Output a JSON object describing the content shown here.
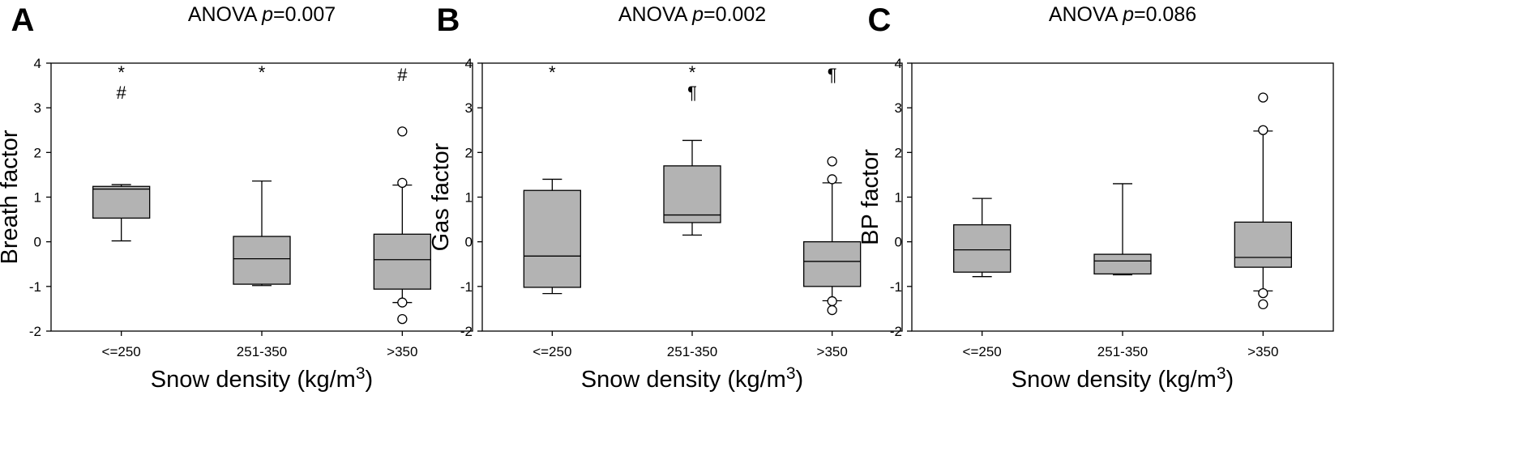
{
  "chart_data": [
    {
      "type": "box",
      "letter": "A",
      "title_prefix": "ANOVA ",
      "title_p": "p",
      "title_value": "=0.007",
      "ylabel": "Breath factor",
      "xlabel_main": "Snow density (kg/m",
      "xlabel_sup": "3",
      "xlabel_close": ")",
      "ylim": [
        -2,
        4
      ],
      "yticks": [
        "-2",
        "-1",
        "0",
        "1",
        "2",
        "3",
        "4"
      ],
      "categories": [
        "<=250",
        "251-350",
        ">350"
      ],
      "boxes": [
        {
          "q1": 0.53,
          "median": 1.18,
          "q3": 1.24,
          "whisker_low": 0.02,
          "whisker_high": 1.28,
          "outliers": []
        },
        {
          "q1": -0.95,
          "median": -0.38,
          "q3": 0.12,
          "whisker_low": -0.98,
          "whisker_high": 1.36,
          "outliers": []
        },
        {
          "q1": -1.06,
          "median": -0.4,
          "q3": 0.17,
          "whisker_low": -1.36,
          "whisker_high": 1.27,
          "outliers": [
            2.47,
            1.32,
            -1.36,
            -1.73
          ]
        }
      ],
      "annotations": [
        {
          "category": 0,
          "y": 3.8,
          "text": "*"
        },
        {
          "category": 0,
          "y": 3.35,
          "text": "#"
        },
        {
          "category": 1,
          "y": 3.8,
          "text": "*"
        },
        {
          "category": 2,
          "y": 3.75,
          "text": "#"
        }
      ]
    },
    {
      "type": "box",
      "letter": "B",
      "title_prefix": "ANOVA ",
      "title_p": "p",
      "title_value": "=0.002",
      "ylabel": "Gas factor",
      "xlabel_main": "Snow density (kg/m",
      "xlabel_sup": "3",
      "xlabel_close": ")",
      "ylim": [
        -2,
        4
      ],
      "yticks": [
        "-2",
        "-1",
        "0",
        "1",
        "2",
        "3",
        "4"
      ],
      "categories": [
        "<=250",
        "251-350",
        ">350"
      ],
      "boxes": [
        {
          "q1": -1.02,
          "median": -0.32,
          "q3": 1.15,
          "whisker_low": -1.16,
          "whisker_high": 1.4,
          "outliers": []
        },
        {
          "q1": 0.43,
          "median": 0.6,
          "q3": 1.7,
          "whisker_low": 0.15,
          "whisker_high": 2.27,
          "outliers": []
        },
        {
          "q1": -1.0,
          "median": -0.44,
          "q3": 0.0,
          "whisker_low": -1.32,
          "whisker_high": 1.32,
          "outliers": [
            1.8,
            1.4,
            -1.33,
            -1.53
          ]
        }
      ],
      "annotations": [
        {
          "category": 0,
          "y": 3.8,
          "text": "*"
        },
        {
          "category": 1,
          "y": 3.8,
          "text": "*"
        },
        {
          "category": 1,
          "y": 3.35,
          "text": "¶"
        },
        {
          "category": 2,
          "y": 3.75,
          "text": "¶"
        }
      ]
    },
    {
      "type": "box",
      "letter": "C",
      "title_prefix": "ANOVA ",
      "title_p": "p",
      "title_value": "=0.086",
      "ylabel": "BP factor",
      "xlabel_main": "Snow density (kg/m",
      "xlabel_sup": "3",
      "xlabel_close": ")",
      "ylim": [
        -2,
        4
      ],
      "yticks": [
        "-2",
        "-1",
        "0",
        "1",
        "2",
        "3",
        "4"
      ],
      "categories": [
        "<=250",
        "251-350",
        ">350"
      ],
      "boxes": [
        {
          "q1": -0.68,
          "median": -0.18,
          "q3": 0.38,
          "whisker_low": -0.78,
          "whisker_high": 0.97,
          "outliers": []
        },
        {
          "q1": -0.72,
          "median": -0.43,
          "q3": -0.28,
          "whisker_low": -0.74,
          "whisker_high": 1.3,
          "outliers": []
        },
        {
          "q1": -0.57,
          "median": -0.35,
          "q3": 0.44,
          "whisker_low": -1.1,
          "whisker_high": 2.48,
          "outliers": [
            3.23,
            2.5,
            -1.15,
            -1.4
          ]
        }
      ],
      "annotations": []
    }
  ]
}
